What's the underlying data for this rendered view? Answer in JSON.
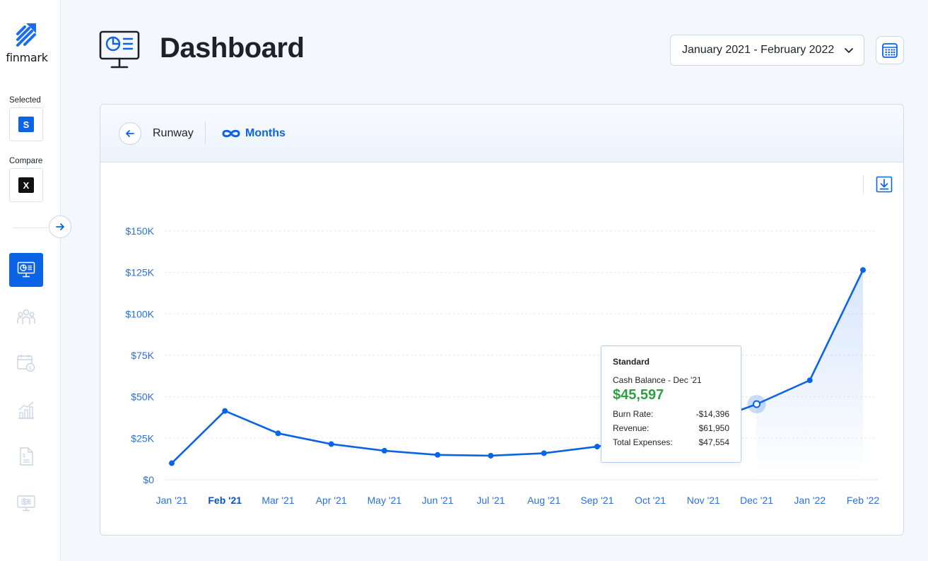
{
  "sidebar": {
    "logo_text": "finmark",
    "selected_label": "Selected",
    "selected_badge": "S",
    "compare_label": "Compare",
    "compare_badge": "X",
    "nav": [
      {
        "name": "dashboard-icon",
        "active": true
      },
      {
        "name": "people-icon",
        "active": false
      },
      {
        "name": "calendar-money-icon",
        "active": false
      },
      {
        "name": "bar-chart-icon",
        "active": false
      },
      {
        "name": "document-money-icon",
        "active": false
      },
      {
        "name": "monitor-settings-icon",
        "active": false
      }
    ]
  },
  "header": {
    "title": "Dashboard",
    "date_range": "January 2021 - February 2022"
  },
  "card": {
    "metric": "Runway",
    "runway_value": "Months"
  },
  "colors": {
    "accent": "#0b63e5",
    "line": "#0b63e5",
    "positive": "#2ea043",
    "axis_text": "#2a6fdb"
  },
  "chart_data": {
    "type": "area",
    "categories": [
      "Jan '21",
      "Feb '21",
      "Mar '21",
      "Apr '21",
      "May '21",
      "Jun '21",
      "Jul '21",
      "Aug '21",
      "Sep '21",
      "Oct '21",
      "Nov '21",
      "Dec '21",
      "Jan '22",
      "Feb '22"
    ],
    "highlighted_category": "Feb '21",
    "series": [
      {
        "name": "Standard",
        "values": [
          10000,
          41500,
          28000,
          21500,
          17500,
          15000,
          14500,
          16000,
          20000,
          26000,
          34000,
          45597,
          60000,
          126500
        ]
      }
    ],
    "yticks": [
      "$0",
      "$25K",
      "$50K",
      "$75K",
      "$100K",
      "$125K",
      "$150K"
    ],
    "ylim": [
      0,
      150000
    ],
    "grid": true
  },
  "tooltip": {
    "series": "Standard",
    "title": "Cash Balance - Dec '21",
    "value": "$45,597",
    "rows": [
      {
        "label": "Burn Rate:",
        "value": "-$14,396"
      },
      {
        "label": "Revenue:",
        "value": "$61,950"
      },
      {
        "label": "Total Expenses:",
        "value": "$47,554"
      }
    ]
  }
}
